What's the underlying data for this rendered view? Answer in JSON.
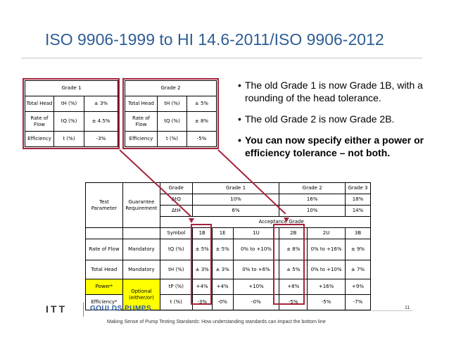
{
  "title": "ISO 9906-1999 to  HI 14.6-2011/ISO 9906-2012",
  "grade1_table": {
    "header": "Grade 1",
    "rows": [
      {
        "param": "Total Head",
        "symbol": "tH (%)",
        "value": "± 3%"
      },
      {
        "param": "Rate of Flow",
        "symbol": "tQ (%)",
        "value": "± 4.5%"
      },
      {
        "param": "Efficiency",
        "symbol": "t (%)",
        "value": "-3%"
      }
    ]
  },
  "grade2_table": {
    "header": "Grade 2",
    "rows": [
      {
        "param": "Total Head",
        "symbol": "tH (%)",
        "value": "± 5%"
      },
      {
        "param": "Rate of Flow",
        "symbol": "tQ (%)",
        "value": "± 8%"
      },
      {
        "param": "Efficiency",
        "symbol": "t (%)",
        "value": "-5%"
      }
    ]
  },
  "bullets": [
    {
      "text": "The old Grade 1 is now Grade 1B, with a rounding of the head tolerance.",
      "bold": false
    },
    {
      "text": "The old Grade 2 is now Grade 2B.",
      "bold": false
    },
    {
      "text": "You can now specify either a power or efficiency tolerance – not both.",
      "bold": true
    }
  ],
  "big_table": {
    "test_parameter": "Test Parameter",
    "guarantee_requirement": "Guarantee Requirement",
    "grade_label": "Grade",
    "grades": [
      "Grade 1",
      "Grade 2",
      "Grade 3"
    ],
    "delta_q_label": "ΔtQ",
    "delta_q": [
      "10%",
      "16%",
      "18%"
    ],
    "delta_h_label": "ΔtH",
    "delta_h": [
      "6%",
      "10%",
      "14%"
    ],
    "acceptance_grade": "Acceptance Grade",
    "symbol_label": "Symbol",
    "acceptance_columns": [
      "1B",
      "1E",
      "1U",
      "2B",
      "2U",
      "3B"
    ],
    "rows": [
      {
        "param": "Rate of Flow",
        "requirement": "Mandatory",
        "symbol": "tQ (%)",
        "values": [
          "± 5%",
          "± 5%",
          "0% to +10%",
          "± 8%",
          "0% to +16%",
          "± 9%"
        ]
      },
      {
        "param": "Total Head",
        "requirement": "Mandatory",
        "symbol": "tH (%)",
        "values": [
          "± 3%",
          "± 3%",
          "0% to +6%",
          "± 5%",
          "0% to +10%",
          "± 7%"
        ]
      },
      {
        "param": "Power*",
        "requirement": "Optional (either/or)",
        "symbol": "tP (%)",
        "values": [
          "+4%",
          "+4%",
          "+10%",
          "+8%",
          "+16%",
          "+9%"
        ]
      },
      {
        "param": "Efficiency*",
        "requirement": "",
        "symbol": "t (%)",
        "values": [
          "-3%",
          "-0%",
          "-0%",
          "-5%",
          "-5%",
          "-7%"
        ]
      }
    ]
  },
  "logos": {
    "itt": "ITT",
    "goulds": "GOULDS PUMPS"
  },
  "page_number": "11",
  "footer": "Making Sense of Pump Testing Standards: How understanding standards can impact the bottom line",
  "colors": {
    "title": "#2e5d93",
    "highlight": "#ffff00",
    "box": "#a4243b"
  }
}
